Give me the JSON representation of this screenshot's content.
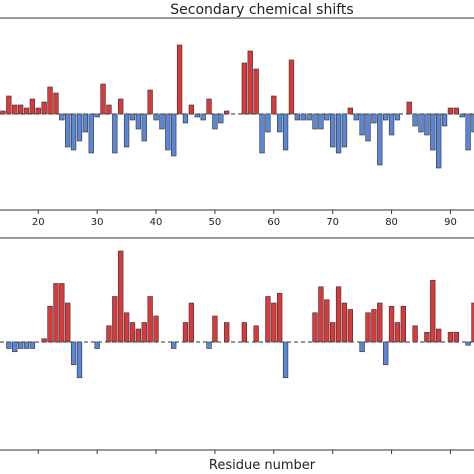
{
  "chart_data": {
    "type": "bar",
    "title": "Secondary chemical shifts",
    "xlabel": "Residue number",
    "xticks": [
      20,
      30,
      40,
      50,
      60,
      70,
      80,
      90
    ],
    "xlim": [
      13.5,
      94
    ],
    "colors": {
      "positive": "#d9393b",
      "negative": "#5b86d6"
    },
    "panels": [
      {
        "name": "top",
        "ylim": [
          -1.6,
          1.6
        ],
        "x": [
          13,
          14,
          15,
          16,
          17,
          18,
          19,
          20,
          21,
          22,
          23,
          24,
          25,
          26,
          27,
          28,
          29,
          30,
          31,
          32,
          33,
          34,
          35,
          36,
          37,
          38,
          39,
          40,
          41,
          42,
          43,
          44,
          45,
          46,
          47,
          48,
          49,
          50,
          51,
          52,
          53,
          54,
          55,
          56,
          57,
          58,
          59,
          60,
          61,
          62,
          63,
          64,
          65,
          66,
          67,
          68,
          69,
          70,
          71,
          72,
          73,
          74,
          75,
          76,
          77,
          78,
          79,
          80,
          81,
          82,
          83,
          84,
          85,
          86,
          87,
          88,
          89,
          90,
          91,
          92,
          93,
          94
        ],
        "values": [
          -0.7,
          0.05,
          0.3,
          0.15,
          0.15,
          0.1,
          0.25,
          0.1,
          0.2,
          0.45,
          0.35,
          -0.1,
          -0.55,
          -0.6,
          -0.45,
          -0.3,
          -0.65,
          -0.05,
          0.5,
          0.15,
          -0.65,
          0.25,
          -0.55,
          -0.1,
          -0.25,
          -0.45,
          0.4,
          -0.1,
          -0.25,
          -0.6,
          -0.7,
          1.15,
          -0.15,
          0.15,
          -0.05,
          -0.1,
          0.25,
          -0.25,
          -0.15,
          0.05,
          0.0,
          0.0,
          0.85,
          1.05,
          0.75,
          -0.65,
          -0.3,
          0.3,
          -0.3,
          -0.6,
          0.9,
          -0.1,
          -0.1,
          -0.1,
          -0.25,
          -0.25,
          -0.1,
          -0.55,
          -0.65,
          -0.55,
          0.1,
          -0.1,
          -0.35,
          -0.45,
          -0.15,
          -0.85,
          -0.1,
          -0.35,
          -0.1,
          0.0,
          0.2,
          -0.2,
          -0.3,
          -0.35,
          -0.6,
          -0.9,
          -0.2,
          0.1,
          0.1,
          -0.05,
          -0.6,
          -0.3
        ]
      },
      {
        "name": "bottom",
        "ylim": [
          -1.6,
          1.6
        ],
        "x": [
          13,
          14,
          15,
          16,
          17,
          18,
          19,
          20,
          21,
          22,
          23,
          24,
          25,
          26,
          27,
          28,
          29,
          30,
          31,
          32,
          33,
          34,
          35,
          36,
          37,
          38,
          39,
          40,
          41,
          42,
          43,
          44,
          45,
          46,
          47,
          48,
          49,
          50,
          51,
          52,
          53,
          54,
          55,
          56,
          57,
          58,
          59,
          60,
          61,
          62,
          63,
          64,
          65,
          66,
          67,
          68,
          69,
          70,
          71,
          72,
          73,
          74,
          75,
          76,
          77,
          78,
          79,
          80,
          81,
          82,
          83,
          84,
          85,
          86,
          87,
          88,
          89,
          90,
          91,
          92,
          93,
          94
        ],
        "values": [
          0.45,
          0.0,
          -0.1,
          -0.15,
          -0.1,
          -0.1,
          -0.1,
          0.0,
          0.05,
          0.55,
          0.9,
          0.9,
          0.6,
          -0.35,
          -0.55,
          0.0,
          0.0,
          -0.1,
          0.0,
          0.25,
          0.7,
          1.4,
          0.45,
          0.3,
          0.2,
          0.3,
          0.7,
          0.4,
          0.0,
          0.0,
          -0.1,
          0.0,
          0.3,
          0.6,
          0.0,
          0.0,
          -0.1,
          0.4,
          0.0,
          0.3,
          0.0,
          0.0,
          0.3,
          0.0,
          0.25,
          0.0,
          0.7,
          0.6,
          0.75,
          -0.55,
          0.0,
          0.0,
          0.0,
          0.0,
          0.45,
          0.85,
          0.65,
          0.3,
          0.85,
          0.6,
          0.5,
          0.0,
          -0.15,
          0.45,
          0.5,
          0.6,
          -0.35,
          0.55,
          0.3,
          0.55,
          0.0,
          0.25,
          0.0,
          0.15,
          0.95,
          0.2,
          0.0,
          0.15,
          0.15,
          0.0,
          -0.05,
          0.6
        ]
      }
    ]
  }
}
